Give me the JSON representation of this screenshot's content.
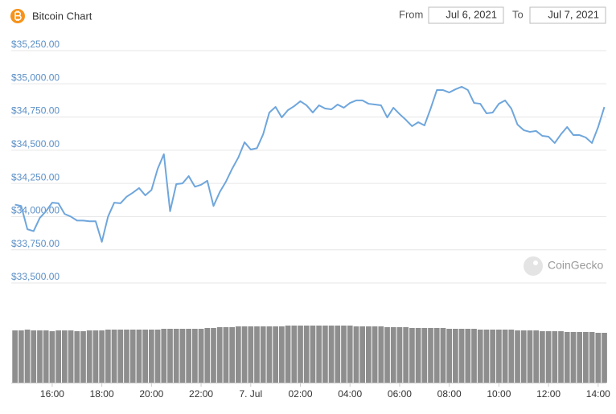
{
  "chart_data": {
    "type": "line",
    "title": "Bitcoin Chart",
    "from_label": "From",
    "from_date": "Jul 6, 2021",
    "to_label": "To",
    "to_date": "Jul 7, 2021",
    "watermark": "CoinGecko",
    "color": "#6fa6dc",
    "grid": true,
    "x": [
      14.5,
      14.75,
      15,
      15.25,
      15.5,
      15.75,
      16,
      16.25,
      16.5,
      16.75,
      17,
      17.25,
      17.5,
      17.75,
      18,
      18.25,
      18.5,
      18.75,
      19,
      19.25,
      19.5,
      19.75,
      20,
      20.25,
      20.5,
      20.75,
      21,
      21.25,
      21.5,
      21.75,
      22,
      22.25,
      22.5,
      22.75,
      23,
      23.25,
      23.5,
      23.75,
      24,
      24.25,
      24.5,
      24.75,
      25,
      25.25,
      25.5,
      25.75,
      26,
      26.25,
      26.5,
      26.75,
      27,
      27.25,
      27.5,
      27.75,
      28,
      28.25,
      28.5,
      28.75,
      29,
      29.25,
      29.5,
      29.75,
      30,
      30.25,
      30.5,
      30.75,
      31,
      31.25,
      31.5,
      31.75,
      32,
      32.25,
      32.5,
      32.75,
      33,
      33.25,
      33.5,
      33.75,
      34,
      34.25,
      34.5,
      34.75,
      35,
      35.25,
      35.5,
      35.75,
      36,
      36.25,
      36.5,
      36.75,
      37,
      37.25,
      37.5,
      37.75,
      38,
      38.25
    ],
    "values": [
      34090,
      34080,
      33905,
      33890,
      33990,
      34040,
      34105,
      34100,
      34020,
      34000,
      33970,
      33970,
      33965,
      33965,
      33810,
      34000,
      34105,
      34100,
      34150,
      34180,
      34215,
      34160,
      34200,
      34360,
      34470,
      34040,
      34245,
      34250,
      34305,
      34225,
      34240,
      34270,
      34080,
      34184,
      34263,
      34360,
      34445,
      34560,
      34505,
      34515,
      34620,
      34784,
      34826,
      34747,
      34802,
      34832,
      34869,
      34838,
      34784,
      34838,
      34814,
      34808,
      34844,
      34820,
      34856,
      34875,
      34875,
      34850,
      34844,
      34838,
      34747,
      34820,
      34772,
      34729,
      34681,
      34711,
      34687,
      34814,
      34953,
      34953,
      34935,
      34959,
      34978,
      34953,
      34856,
      34850,
      34778,
      34784,
      34850,
      34875,
      34814,
      34693,
      34651,
      34638,
      34645,
      34608,
      34602,
      34554,
      34620,
      34675,
      34614,
      34614,
      34596,
      34554,
      34675,
      34826
    ],
    "volume": [
      65,
      65,
      66,
      65,
      65,
      65,
      64,
      65,
      65,
      65,
      64,
      64,
      65,
      65,
      65,
      66,
      66,
      66,
      66,
      66,
      66,
      66,
      66,
      66,
      67,
      67,
      67,
      67,
      67,
      67,
      67,
      68,
      68,
      69,
      69,
      69,
      70,
      70,
      70,
      70,
      70,
      70,
      70,
      70,
      71,
      71,
      71,
      71,
      71,
      71,
      71,
      71,
      71,
      71,
      71,
      70,
      70,
      70,
      70,
      70,
      69,
      69,
      69,
      69,
      68,
      68,
      68,
      68,
      68,
      68,
      67,
      67,
      67,
      67,
      67,
      66,
      66,
      66,
      66,
      66,
      66,
      65,
      65,
      65,
      65,
      64,
      64,
      64,
      64,
      63,
      63,
      63,
      63,
      63,
      62,
      62
    ],
    "volume_color": "#8e8e8e",
    "volume_lim": [
      0,
      72
    ],
    "xlim": [
      14.35,
      38.33
    ],
    "xticks": [
      {
        "value": 16,
        "label": "16:00"
      },
      {
        "value": 18,
        "label": "18:00"
      },
      {
        "value": 20,
        "label": "20:00"
      },
      {
        "value": 22,
        "label": "22:00"
      },
      {
        "value": 24,
        "label": "7. Jul"
      },
      {
        "value": 26,
        "label": "02:00"
      },
      {
        "value": 28,
        "label": "04:00"
      },
      {
        "value": 30,
        "label": "06:00"
      },
      {
        "value": 32,
        "label": "08:00"
      },
      {
        "value": 34,
        "label": "10:00"
      },
      {
        "value": 36,
        "label": "12:00"
      },
      {
        "value": 38,
        "label": "14:00"
      }
    ],
    "ylim": [
      33500,
      35250
    ],
    "yticks": [
      {
        "value": 33500,
        "label": "$33,500.00"
      },
      {
        "value": 33750,
        "label": "$33,750.00"
      },
      {
        "value": 34000,
        "label": "$34,000.00"
      },
      {
        "value": 34250,
        "label": "$34,250.00"
      },
      {
        "value": 34500,
        "label": "$34,500.00"
      },
      {
        "value": 34750,
        "label": "$34,750.00"
      },
      {
        "value": 35000,
        "label": "$35,000.00"
      },
      {
        "value": 35250,
        "label": "$35,250.00"
      }
    ]
  }
}
